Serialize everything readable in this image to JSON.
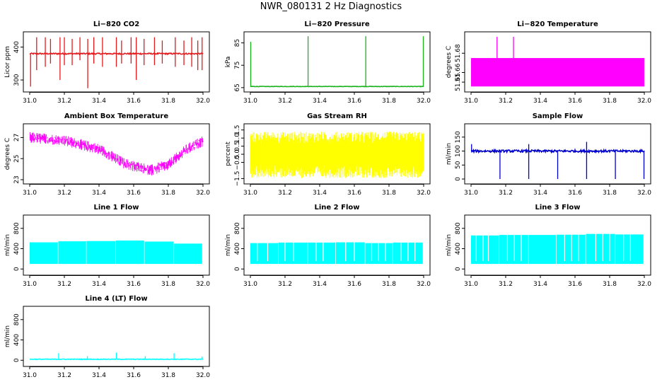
{
  "figure_title": "NWR_080131  2 Hz Diagnostics",
  "chart_data": [
    {
      "type": "line",
      "id": "co2",
      "title": "Li−820 CO2",
      "ylabel": "Licor ppm",
      "xlabel": "",
      "xlim": [
        31.0,
        32.0
      ],
      "ylim": [
        270,
        440
      ],
      "xticks": [
        31.0,
        31.2,
        31.4,
        31.6,
        31.8,
        32.0
      ],
      "xtick_labels": [
        "31.0",
        "31.2",
        "31.4",
        "31.6",
        "31.8",
        "32.0"
      ],
      "yticks": [
        300,
        400
      ],
      "ytick_labels": [
        "300",
        "400"
      ],
      "color": "#e41a1c",
      "style": "baseline",
      "baseline": 380,
      "noise": 2,
      "events": [
        {
          "x": 31.005,
          "lo": 280,
          "hi": 380
        },
        {
          "x": 31.04,
          "lo": 330,
          "hi": 430
        },
        {
          "x": 31.09,
          "lo": 340,
          "hi": 430
        },
        {
          "x": 31.12,
          "lo": 350,
          "hi": 425
        },
        {
          "x": 31.175,
          "lo": 300,
          "hi": 430
        },
        {
          "x": 31.2,
          "lo": 345,
          "hi": 430
        },
        {
          "x": 31.245,
          "lo": 345,
          "hi": 425
        },
        {
          "x": 31.29,
          "lo": 360,
          "hi": 430
        },
        {
          "x": 31.335,
          "lo": 275,
          "hi": 425
        },
        {
          "x": 31.37,
          "lo": 350,
          "hi": 430
        },
        {
          "x": 31.42,
          "lo": 340,
          "hi": 430
        },
        {
          "x": 31.5,
          "lo": 340,
          "hi": 430
        },
        {
          "x": 31.53,
          "lo": 350,
          "hi": 420
        },
        {
          "x": 31.585,
          "lo": 350,
          "hi": 430
        },
        {
          "x": 31.615,
          "lo": 300,
          "hi": 430
        },
        {
          "x": 31.66,
          "lo": 345,
          "hi": 425
        },
        {
          "x": 31.72,
          "lo": 345,
          "hi": 430
        },
        {
          "x": 31.765,
          "lo": 350,
          "hi": 420
        },
        {
          "x": 31.84,
          "lo": 340,
          "hi": 430
        },
        {
          "x": 31.89,
          "lo": 345,
          "hi": 420
        },
        {
          "x": 31.935,
          "lo": 340,
          "hi": 430
        },
        {
          "x": 31.97,
          "lo": 330,
          "hi": 420
        },
        {
          "x": 31.995,
          "lo": 330,
          "hi": 430
        }
      ]
    },
    {
      "type": "line",
      "id": "pressure",
      "title": "Li−820 Pressure",
      "ylabel": "kPa",
      "xlabel": "",
      "xlim": [
        31.0,
        32.0
      ],
      "ylim": [
        64,
        89
      ],
      "xticks": [
        31.0,
        31.2,
        31.4,
        31.6,
        31.8,
        32.0
      ],
      "xtick_labels": [
        "31.0",
        "31.2",
        "31.4",
        "31.6",
        "31.8",
        "32.0"
      ],
      "yticks": [
        65,
        75,
        85
      ],
      "ytick_labels": [
        "65",
        "75",
        "85"
      ],
      "color": "#1bb31b",
      "style": "baseline",
      "baseline": 65.5,
      "noise": 0.1,
      "events": [
        {
          "x": 31.002,
          "lo": 65.3,
          "hi": 85.5
        },
        {
          "x": 31.333,
          "lo": 65.3,
          "hi": 88
        },
        {
          "x": 31.666,
          "lo": 65.3,
          "hi": 88
        },
        {
          "x": 31.998,
          "lo": 65.3,
          "hi": 88
        }
      ]
    },
    {
      "type": "area",
      "id": "li820temp",
      "title": "Li−820 Temperature",
      "ylabel": "degrees C",
      "xlabel": "",
      "xlim": [
        31.0,
        32.0
      ],
      "ylim": [
        51.642,
        51.7
      ],
      "xticks": [
        31.0,
        31.2,
        31.4,
        31.6,
        31.8,
        32.0
      ],
      "xtick_labels": [
        "31.0",
        "31.2",
        "31.4",
        "31.6",
        "31.8",
        "32.0"
      ],
      "yticks": [
        51.65,
        51.66,
        51.68
      ],
      "ytick_labels": [
        "51.65",
        "51.66",
        "51.68"
      ],
      "color": "#ff00ff",
      "style": "band",
      "band_lo": 51.6455,
      "band_hi": 51.675,
      "events": [
        {
          "x": 31.15,
          "lo": 51.675,
          "hi": 51.697
        },
        {
          "x": 31.245,
          "lo": 51.675,
          "hi": 51.697
        }
      ]
    },
    {
      "type": "line",
      "id": "boxtemp",
      "title": "Ambient Box Temperature",
      "ylabel": "degrees C",
      "xlabel": "",
      "xlim": [
        31.0,
        32.0
      ],
      "ylim": [
        22.8,
        28.1
      ],
      "xticks": [
        31.0,
        31.2,
        31.4,
        31.6,
        31.8,
        32.0
      ],
      "xtick_labels": [
        "31.0",
        "31.2",
        "31.4",
        "31.6",
        "31.8",
        "32.0"
      ],
      "yticks": [
        23,
        25,
        27
      ],
      "ytick_labels": [
        "23",
        "25",
        "27"
      ],
      "color": "#ff00ff",
      "style": "curve",
      "noise": 0.75,
      "trend_x": [
        31.0,
        31.2,
        31.4,
        31.55,
        31.7,
        31.8,
        31.9,
        32.0
      ],
      "trend_y": [
        27.0,
        26.7,
        25.9,
        24.5,
        23.9,
        24.4,
        25.8,
        26.7
      ]
    },
    {
      "type": "line",
      "id": "rh",
      "title": "Gas Stream RH",
      "ylabel": "percent",
      "xlabel": "",
      "xlim": [
        31.0,
        32.0
      ],
      "ylim": [
        -1.7,
        1.75
      ],
      "xticks": [
        31.0,
        31.2,
        31.4,
        31.6,
        31.8,
        32.0
      ],
      "xtick_labels": [
        "31.0",
        "31.2",
        "31.4",
        "31.6",
        "31.8",
        "32.0"
      ],
      "yticks": [
        -1.5,
        -0.5,
        0.0,
        0.5,
        1.0,
        1.5
      ],
      "ytick_labels": [
        "−1.5",
        "−0.5",
        "0.0",
        "0.5",
        "1.0",
        "1.5"
      ],
      "color": "#ffff00",
      "style": "noise",
      "center": 0.0,
      "noise": 1.4
    },
    {
      "type": "line",
      "id": "sampleflow",
      "title": "Sample Flow",
      "ylabel": "ml/min",
      "xlabel": "",
      "xlim": [
        31.0,
        32.0
      ],
      "ylim": [
        -10,
        190
      ],
      "xticks": [
        31.0,
        31.2,
        31.4,
        31.6,
        31.8,
        32.0
      ],
      "xtick_labels": [
        "31.0",
        "31.2",
        "31.4",
        "31.6",
        "31.8",
        "32.0"
      ],
      "yticks": [
        0,
        50,
        100,
        150
      ],
      "ytick_labels": [
        "0",
        "50",
        "100",
        "150"
      ],
      "color": "#0000cd",
      "style": "baseline",
      "baseline": 100,
      "noise": 4,
      "events": [
        {
          "x": 31.003,
          "lo": 95,
          "hi": 125
        },
        {
          "x": 31.167,
          "lo": 0,
          "hi": 100
        },
        {
          "x": 31.333,
          "lo": 0,
          "hi": 125
        },
        {
          "x": 31.5,
          "lo": 0,
          "hi": 100
        },
        {
          "x": 31.667,
          "lo": 0,
          "hi": 133
        },
        {
          "x": 31.833,
          "lo": 0,
          "hi": 100
        },
        {
          "x": 31.998,
          "lo": 0,
          "hi": 100
        }
      ]
    },
    {
      "type": "area",
      "id": "line1",
      "title": "Line 1 Flow",
      "ylabel": "ml/min",
      "xlabel": "",
      "xlim": [
        31.0,
        32.0
      ],
      "ylim": [
        -80,
        1020
      ],
      "xticks": [
        31.0,
        31.2,
        31.4,
        31.6,
        31.8,
        32.0
      ],
      "xtick_labels": [
        "31.0",
        "31.2",
        "31.4",
        "31.6",
        "31.8",
        "32.0"
      ],
      "yticks": [
        0,
        400,
        800
      ],
      "ytick_labels": [
        "0",
        "400",
        "800"
      ],
      "color": "#00ffff",
      "style": "segments",
      "lo": 100,
      "segments": [
        {
          "x0": 31.0,
          "x1": 31.162,
          "hi": 525
        },
        {
          "x0": 31.165,
          "x1": 31.325,
          "hi": 545
        },
        {
          "x0": 31.328,
          "x1": 31.495,
          "hi": 550
        },
        {
          "x0": 31.498,
          "x1": 31.66,
          "hi": 560
        },
        {
          "x0": 31.663,
          "x1": 31.83,
          "hi": 540
        },
        {
          "x0": 31.833,
          "x1": 31.995,
          "hi": 500
        }
      ]
    },
    {
      "type": "area",
      "id": "line2",
      "title": "Line 2 Flow",
      "ylabel": "ml/min",
      "xlabel": "",
      "xlim": [
        31.0,
        32.0
      ],
      "ylim": [
        -80,
        1020
      ],
      "xticks": [
        31.0,
        31.2,
        31.4,
        31.6,
        31.8,
        32.0
      ],
      "xtick_labels": [
        "31.0",
        "31.2",
        "31.4",
        "31.6",
        "31.8",
        "32.0"
      ],
      "yticks": [
        0,
        400,
        800
      ],
      "ytick_labels": [
        "0",
        "400",
        "800"
      ],
      "color": "#00ffff",
      "style": "segments",
      "lo": 100,
      "segments": [
        {
          "x0": 31.0,
          "x1": 31.16,
          "hi": 510
        },
        {
          "x0": 31.163,
          "x1": 31.33,
          "hi": 520
        },
        {
          "x0": 31.333,
          "x1": 31.49,
          "hi": 520
        },
        {
          "x0": 31.493,
          "x1": 31.66,
          "hi": 525
        },
        {
          "x0": 31.663,
          "x1": 31.82,
          "hi": 510
        },
        {
          "x0": 31.823,
          "x1": 31.995,
          "hi": 520
        }
      ],
      "gaps": [
        31.04,
        31.1,
        31.2,
        31.25,
        31.38,
        31.42,
        31.55,
        31.6,
        31.7,
        31.74,
        31.78,
        31.87,
        31.91,
        31.95
      ]
    },
    {
      "type": "area",
      "id": "line3",
      "title": "Line 3 Flow",
      "ylabel": "ml/min",
      "xlabel": "",
      "xlim": [
        31.0,
        32.0
      ],
      "ylim": [
        -80,
        1020
      ],
      "xticks": [
        31.0,
        31.2,
        31.4,
        31.6,
        31.8,
        32.0
      ],
      "xtick_labels": [
        "31.0",
        "31.2",
        "31.4",
        "31.6",
        "31.8",
        "32.0"
      ],
      "yticks": [
        0,
        400,
        800
      ],
      "ytick_labels": [
        "0",
        "400",
        "800"
      ],
      "color": "#00ffff",
      "style": "segments",
      "lo": 100,
      "segments": [
        {
          "x0": 31.0,
          "x1": 31.16,
          "hi": 660
        },
        {
          "x0": 31.163,
          "x1": 31.33,
          "hi": 670
        },
        {
          "x0": 31.333,
          "x1": 31.49,
          "hi": 670
        },
        {
          "x0": 31.493,
          "x1": 31.66,
          "hi": 675
        },
        {
          "x0": 31.663,
          "x1": 31.83,
          "hi": 690
        },
        {
          "x0": 31.833,
          "x1": 31.995,
          "hi": 680
        }
      ],
      "gaps": [
        31.03,
        31.07,
        31.1,
        31.21,
        31.25,
        31.29,
        31.54,
        31.58,
        31.62,
        31.72,
        31.76,
        31.8,
        31.88,
        31.92
      ]
    },
    {
      "type": "line",
      "id": "line4",
      "title": "Line 4 (LT) Flow",
      "ylabel": "ml/min",
      "xlabel": "",
      "xlim": [
        31.0,
        32.0
      ],
      "ylim": [
        -80,
        1020
      ],
      "xticks": [
        31.0,
        31.2,
        31.4,
        31.6,
        31.8,
        32.0
      ],
      "xtick_labels": [
        "31.0",
        "31.2",
        "31.4",
        "31.6",
        "31.8",
        "32.0"
      ],
      "yticks": [
        0,
        400,
        800
      ],
      "ytick_labels": [
        "0",
        "400",
        "800"
      ],
      "color": "#00ffff",
      "style": "baseline",
      "baseline": 20,
      "noise": 6,
      "events": [
        {
          "x": 31.167,
          "lo": 20,
          "hi": 140
        },
        {
          "x": 31.333,
          "lo": 20,
          "hi": 80
        },
        {
          "x": 31.5,
          "lo": 20,
          "hi": 150
        },
        {
          "x": 31.667,
          "lo": 20,
          "hi": 80
        },
        {
          "x": 31.833,
          "lo": 20,
          "hi": 140
        },
        {
          "x": 31.995,
          "lo": 20,
          "hi": 75
        }
      ]
    }
  ]
}
